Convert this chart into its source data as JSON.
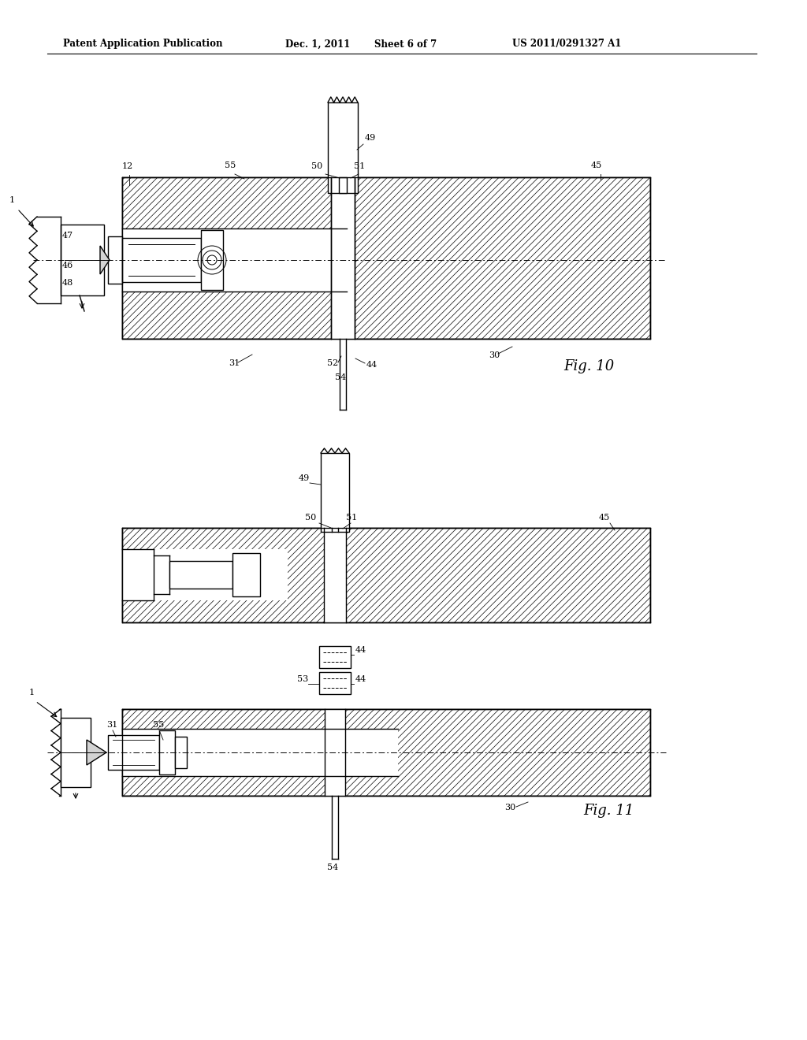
{
  "background_color": "#ffffff",
  "line_color": "#000000",
  "fig_width": 10.24,
  "fig_height": 13.2,
  "header_text": "Patent Application Publication",
  "header_date": "Dec. 1, 2011",
  "header_sheet": "Sheet 6 of 7",
  "header_patent": "US 2011/0291327 A1",
  "fig10_label": "Fig. 10",
  "fig11_label": "Fig. 11",
  "lw": 1.0,
  "hatch_lw": 0.5
}
